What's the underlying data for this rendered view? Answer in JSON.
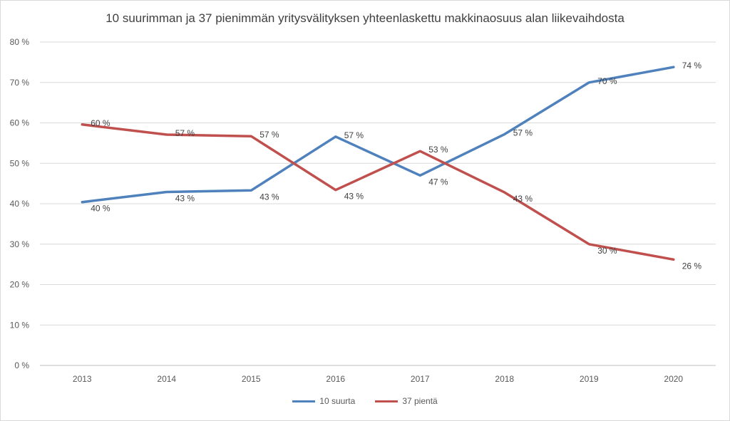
{
  "chart_data": {
    "type": "line",
    "title": "10 suurimman ja 37 pienimmän yritysvälityksen yhteenlaskettu makkinaosuus alan liikevaihdosta",
    "xlabel": "",
    "ylabel": "",
    "categories": [
      "2013",
      "2014",
      "2015",
      "2016",
      "2017",
      "2018",
      "2019",
      "2020"
    ],
    "ylim": [
      0,
      80
    ],
    "yticks": [
      "0 %",
      "10 %",
      "20 %",
      "30 %",
      "40 %",
      "50 %",
      "60 %",
      "70 %",
      "80 %"
    ],
    "ytick_values": [
      0,
      10,
      20,
      30,
      40,
      50,
      60,
      70,
      80
    ],
    "grid": true,
    "legend_position": "bottom",
    "series": [
      {
        "name": "10 suurta",
        "color": "#4f81bd",
        "values": [
          40.4,
          42.9,
          43.3,
          56.6,
          47.0,
          57.2,
          70.0,
          73.8
        ],
        "labels": [
          "40 %",
          "43 %",
          "43 %",
          "57 %",
          "47 %",
          "57 %",
          "70 %",
          "74 %"
        ]
      },
      {
        "name": "37 pientä",
        "color": "#c0504d",
        "values": [
          59.6,
          57.1,
          56.7,
          43.4,
          53.0,
          42.8,
          30.0,
          26.2
        ],
        "labels": [
          "60 %",
          "57 %",
          "57 %",
          "43 %",
          "53 %",
          "43 %",
          "30 %",
          "26 %"
        ]
      }
    ]
  }
}
